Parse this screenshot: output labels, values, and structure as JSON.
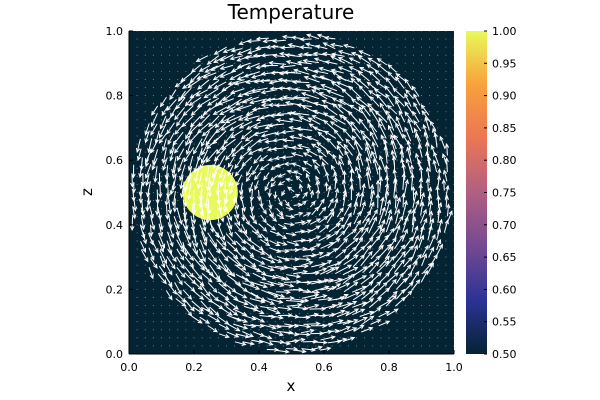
{
  "chart_data": {
    "type": "heatmap",
    "title": "Temperature",
    "xlabel": "x",
    "ylabel": "z",
    "xlim": [
      0.0,
      1.0
    ],
    "ylim": [
      0.0,
      1.0
    ],
    "x_ticks": [
      "0.0",
      "0.2",
      "0.4",
      "0.6",
      "0.8",
      "1.0"
    ],
    "x_tick_values": [
      0.0,
      0.2,
      0.4,
      0.6,
      0.8,
      1.0
    ],
    "y_ticks": [
      "0.0",
      "0.2",
      "0.4",
      "0.6",
      "0.8",
      "1.0"
    ],
    "y_tick_values": [
      0.0,
      0.2,
      0.4,
      0.6,
      0.8,
      1.0
    ],
    "colorbar": {
      "range": [
        0.5,
        1.0
      ],
      "ticks": [
        "0.50",
        "0.55",
        "0.60",
        "0.65",
        "0.70",
        "0.75",
        "0.80",
        "0.85",
        "0.90",
        "0.95",
        "1.00"
      ],
      "tick_values": [
        0.5,
        0.55,
        0.6,
        0.65,
        0.7,
        0.75,
        0.8,
        0.85,
        0.9,
        0.95,
        1.0
      ],
      "colormap": "thermal",
      "colors": [
        "#042333",
        "#2c3395",
        "#744992",
        "#b15f82",
        "#eb7655",
        "#f8a13c",
        "#e8fa5b"
      ]
    },
    "field": {
      "background_value": 0.5,
      "hot_spot": {
        "center": [
          0.25,
          0.5
        ],
        "radius": 0.085,
        "value": 1.0
      }
    },
    "vector_overlay": {
      "type": "quiver",
      "color": "#ffffff",
      "pattern": "vortex",
      "rotation": "counterclockwise",
      "center": [
        0.5,
        0.5
      ],
      "radius": 0.5
    },
    "grid": false,
    "legend": "colorbar-right"
  }
}
